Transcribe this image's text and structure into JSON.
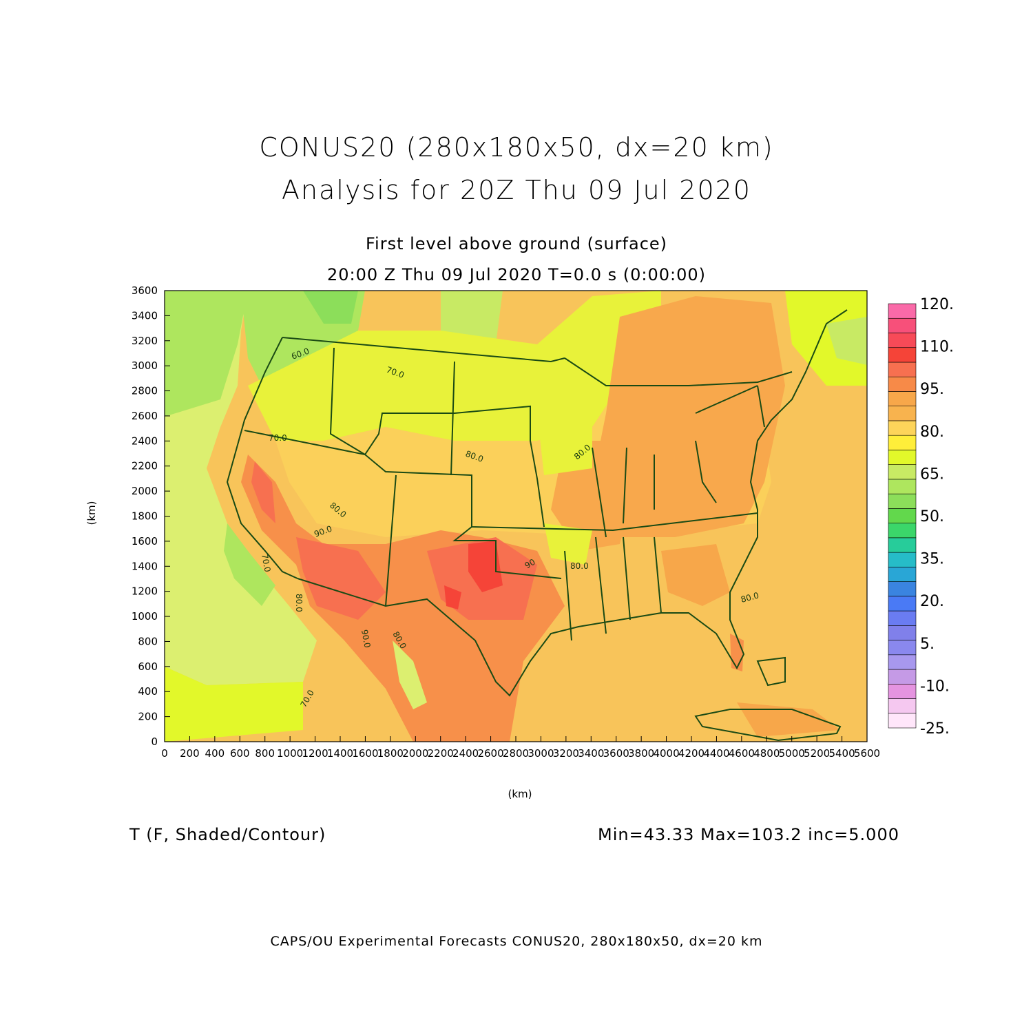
{
  "header": {
    "title_line1": "CONUS20 (280x180x50, dx=20 km)",
    "title_line2": "Analysis for 20Z Thu 09 Jul 2020",
    "subtitle_line1": "First level above ground (surface)",
    "subtitle_line2": "20:00 Z Thu 09 Jul 2020    T=0.0 s (0:00:00)"
  },
  "axes": {
    "x_label": "(km)",
    "y_label": "(km)",
    "x_ticks": [
      "0",
      "200",
      "400",
      "600",
      "800",
      "1000",
      "1200",
      "1400",
      "1600",
      "1800",
      "2000",
      "2200",
      "2400",
      "2600",
      "2800",
      "3000",
      "3200",
      "3400",
      "3600",
      "3800",
      "4000",
      "4200",
      "4400",
      "4600",
      "4800",
      "5000",
      "5200",
      "5400",
      "5600"
    ],
    "y_ticks": [
      "0",
      "200",
      "400",
      "600",
      "800",
      "1000",
      "1200",
      "1400",
      "1600",
      "1800",
      "2000",
      "2200",
      "2400",
      "2600",
      "2800",
      "3000",
      "3200",
      "3400",
      "3600"
    ],
    "x_range": [
      0,
      5600
    ],
    "y_range": [
      0,
      3600
    ]
  },
  "colorbar": {
    "labels": [
      "120.",
      "110.",
      "95.",
      "80.",
      "65.",
      "50.",
      "35.",
      "20.",
      "5.",
      "-10.",
      "-25."
    ],
    "colors": [
      "#ffe6fa",
      "#f5c8f0",
      "#e594e0",
      "#c59ae6",
      "#a898ee",
      "#8a88ee",
      "#8080ea",
      "#6a7cf2",
      "#4a7af5",
      "#3a84e0",
      "#29a6d6",
      "#26bcc8",
      "#27cc9a",
      "#3bd66a",
      "#62d84c",
      "#8cde5a",
      "#aee65e",
      "#c8ea64",
      "#e2f82a",
      "#ffee3a",
      "#fdd45a",
      "#f8b34e",
      "#f7a74a",
      "#f78a48",
      "#f77050",
      "#f54438",
      "#f74a58",
      "#f7507a",
      "#fa6aa8"
    ]
  },
  "contour_labels": [
    "80.0",
    "70.0",
    "80.0",
    "80.0",
    "70.0",
    "80.0",
    "90.0",
    "80.0",
    "70.0",
    "90",
    "80.0",
    "90.0",
    "80.0",
    "80.0",
    "70.0",
    "80.0",
    "70.0",
    "60.0"
  ],
  "footer": {
    "variable_label": "T (F, Shaded/Contour)",
    "stats": "Min=43.33  Max=103.2  inc=5.000",
    "credit": "CAPS/OU Experimental Forecasts  CONUS20, 280x180x50, dx=20 km"
  }
}
